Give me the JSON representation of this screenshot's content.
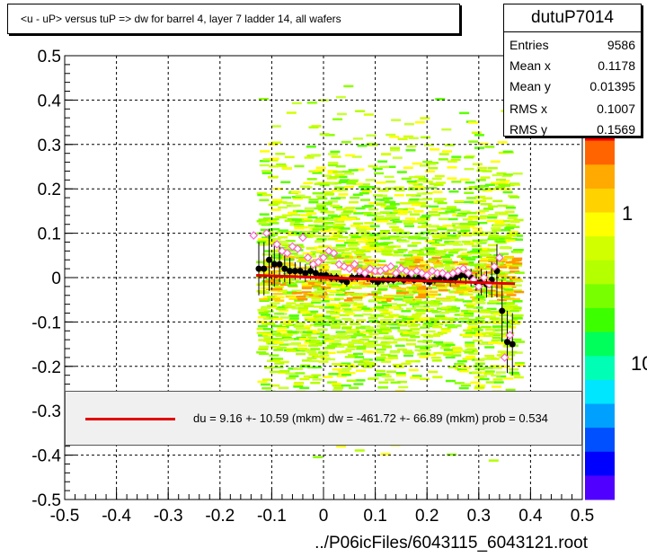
{
  "title": "<u - uP>       versus  tuP =>  dw for barrel 4, layer 7 ladder 14, all wafers",
  "stats": {
    "name": "dutuP7014",
    "rows": [
      {
        "label": "Entries",
        "value": "9586"
      },
      {
        "label": "Mean x",
        "value": "0.1178"
      },
      {
        "label": "Mean y",
        "value": "0.01395"
      },
      {
        "label": "RMS x",
        "value": "0.1007"
      },
      {
        "label": "RMS y",
        "value": "0.1569"
      }
    ]
  },
  "fit_legend": "du =     9.16 +- 10.59 (mkm) dw = -461.72 +- 66.89 (mkm) prob = 0.534",
  "colors": {
    "fit_line": "#e00000",
    "black_markers": "#000000",
    "open_markers": "#ff66cc"
  },
  "chart_data": {
    "type": "scatter",
    "title": "<u - uP>       versus  tuP =>  dw for barrel 4, layer 7 ladder 14, all wafers",
    "xlabel": "../P06icFiles/6043115_6043121.root",
    "ylabel": "",
    "xlim": [
      -0.5,
      0.5
    ],
    "ylim": [
      -0.5,
      0.5
    ],
    "x_ticks": [
      "-0.5",
      "-0.4",
      "-0.3",
      "-0.2",
      "-0.1",
      "0",
      "0.1",
      "0.2",
      "0.3",
      "0.4",
      "0.5"
    ],
    "y_ticks": [
      "-0.5",
      "-0.4",
      "-0.3",
      "-0.2",
      "-0.1",
      "0",
      "0.1",
      "0.2",
      "0.3",
      "0.4",
      "0.5"
    ],
    "grid": true,
    "colorbar_labels": [
      "1",
      "10"
    ],
    "histogram_region": {
      "x_range": [
        -0.13,
        0.37
      ],
      "y_range": [
        -0.5,
        0.5
      ],
      "density_peak_y": 0.0
    },
    "series": [
      {
        "marker": "filled-circle",
        "x": [
          -0.125,
          -0.115,
          -0.105,
          -0.095,
          -0.085,
          -0.075,
          -0.065,
          -0.055,
          -0.045,
          -0.035,
          -0.025,
          -0.015,
          -0.005,
          0.005,
          0.015,
          0.025,
          0.035,
          0.045,
          0.055,
          0.065,
          0.075,
          0.085,
          0.095,
          0.105,
          0.115,
          0.125,
          0.135,
          0.145,
          0.155,
          0.165,
          0.175,
          0.185,
          0.195,
          0.205,
          0.215,
          0.225,
          0.235,
          0.245,
          0.255,
          0.265,
          0.275,
          0.285,
          0.295,
          0.305,
          0.315,
          0.325,
          0.335,
          0.345,
          0.355,
          0.365
        ],
        "y": [
          0.02,
          0.02,
          0.04,
          0.03,
          0.03,
          0.02,
          0.015,
          0.015,
          0.015,
          0.01,
          0.015,
          0.01,
          0.005,
          0.005,
          0.0,
          0.0,
          -0.005,
          -0.01,
          0.0,
          0.0,
          0.005,
          0.0,
          -0.005,
          -0.01,
          -0.005,
          -0.005,
          -0.005,
          0.0,
          -0.005,
          0.0,
          -0.005,
          0.0,
          -0.005,
          -0.01,
          -0.005,
          0.0,
          0.0,
          -0.005,
          0.0,
          0.005,
          0.005,
          0.0,
          -0.01,
          -0.01,
          -0.015,
          -0.005,
          0.015,
          -0.075,
          -0.145,
          -0.15
        ],
        "yerr": [
          0.06,
          0.06,
          0.07,
          0.05,
          0.04,
          0.03,
          0.03,
          0.02,
          0.02,
          0.02,
          0.02,
          0.015,
          0.015,
          0.01,
          0.01,
          0.01,
          0.01,
          0.01,
          0.01,
          0.01,
          0.01,
          0.01,
          0.01,
          0.01,
          0.01,
          0.01,
          0.01,
          0.01,
          0.01,
          0.01,
          0.01,
          0.01,
          0.01,
          0.01,
          0.01,
          0.01,
          0.01,
          0.015,
          0.015,
          0.015,
          0.02,
          0.02,
          0.02,
          0.03,
          0.03,
          0.04,
          0.06,
          0.07,
          0.07,
          0.07
        ]
      },
      {
        "marker": "open-diamond",
        "x": [
          -0.135,
          -0.11,
          -0.09,
          -0.08,
          -0.07,
          -0.06,
          -0.05,
          -0.04,
          -0.03,
          -0.02,
          -0.01,
          0.0,
          0.01,
          0.02,
          0.03,
          0.04,
          0.05,
          0.06,
          0.07,
          0.08,
          0.09,
          0.1,
          0.11,
          0.12,
          0.13,
          0.14,
          0.15,
          0.16,
          0.17,
          0.18,
          0.19,
          0.2,
          0.21,
          0.22,
          0.23,
          0.24,
          0.25,
          0.26,
          0.27,
          0.28,
          0.29,
          0.3,
          0.31,
          0.32,
          0.33,
          0.34,
          0.35,
          0.36
        ],
        "y": [
          0.095,
          0.1,
          0.075,
          0.06,
          0.055,
          0.07,
          0.065,
          0.09,
          0.045,
          0.03,
          0.035,
          0.045,
          0.06,
          0.055,
          0.03,
          0.025,
          0.02,
          0.03,
          0.015,
          0.01,
          0.02,
          0.015,
          0.015,
          0.02,
          0.025,
          0.01,
          0.02,
          0.015,
          0.01,
          0.015,
          0.01,
          0.005,
          0.015,
          0.01,
          0.01,
          0.005,
          0.01,
          0.015,
          0.02,
          0.01,
          -0.005,
          -0.02,
          0.0,
          -0.015,
          0.025,
          0.045,
          -0.18,
          -0.13
        ]
      }
    ],
    "fit_line": {
      "x": [
        -0.13,
        0.37
      ],
      "y": [
        0.005,
        -0.014
      ]
    }
  }
}
